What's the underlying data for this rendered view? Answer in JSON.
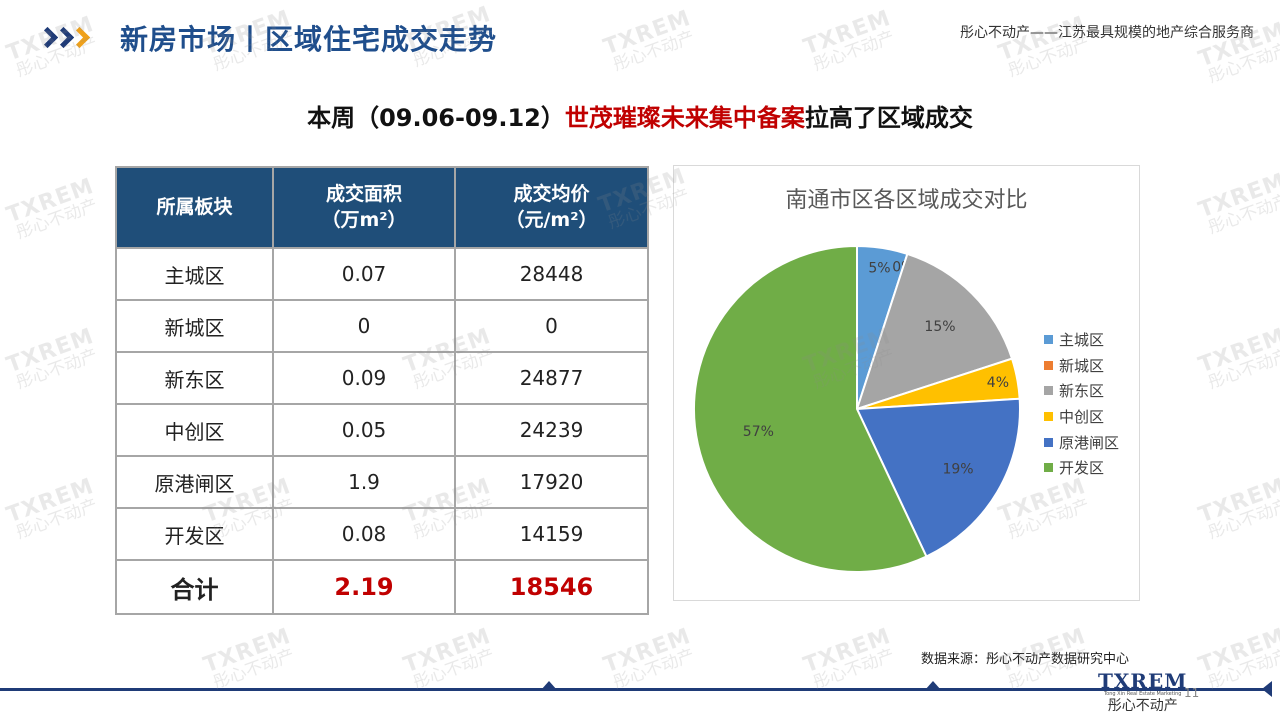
{
  "header": {
    "title": "新房市场丨区域住宅成交走势",
    "slogan": "彤心不动产——江苏最具规模的地产综合服务商"
  },
  "headline": {
    "prefix": "本周（09.06-09.12）",
    "highlight": "世茂璀璨未来集中备案",
    "suffix": "拉高了区域成交"
  },
  "table": {
    "headers": [
      {
        "line1": "所属板块",
        "line2": ""
      },
      {
        "line1": "成交面积",
        "line2": "（万m²）"
      },
      {
        "line1": "成交均价",
        "line2": "（元/m²）"
      }
    ],
    "rows": [
      {
        "region": "主城区",
        "area": "0.07",
        "price": "28448"
      },
      {
        "region": "新城区",
        "area": "0",
        "price": "0"
      },
      {
        "region": "新东区",
        "area": "0.09",
        "price": "24877"
      },
      {
        "region": "中创区",
        "area": "0.05",
        "price": "24239"
      },
      {
        "region": "原港闸区",
        "area": "1.9",
        "price": "17920"
      },
      {
        "region": "开发区",
        "area": "0.08",
        "price": "14159"
      }
    ],
    "total": {
      "label": "合计",
      "area": "2.19",
      "price": "18546"
    }
  },
  "chart_data": {
    "type": "pie",
    "title": "南通市区各区域成交对比",
    "categories": [
      "主城区",
      "新城区",
      "新东区",
      "中创区",
      "原港闸区",
      "开发区"
    ],
    "values": [
      5,
      0,
      15,
      4,
      19,
      57
    ],
    "labels": [
      "5%",
      "0%",
      "15%",
      "4%",
      "19%",
      "57%"
    ],
    "colors": [
      "#5b9bd5",
      "#ed7d31",
      "#a5a5a5",
      "#ffc000",
      "#4472c4",
      "#70ad47"
    ],
    "legend_position": "right"
  },
  "source": "数据来源：彤心不动产数据研究中心",
  "footer": {
    "logo_text": "TXREM",
    "logo_subtitle": "Tong Xin Real Estate Marketing",
    "logo_cn": "彤心不动产",
    "page_number": "11"
  },
  "watermark": {
    "en": "TXREM",
    "cn": "彤心不动产"
  }
}
